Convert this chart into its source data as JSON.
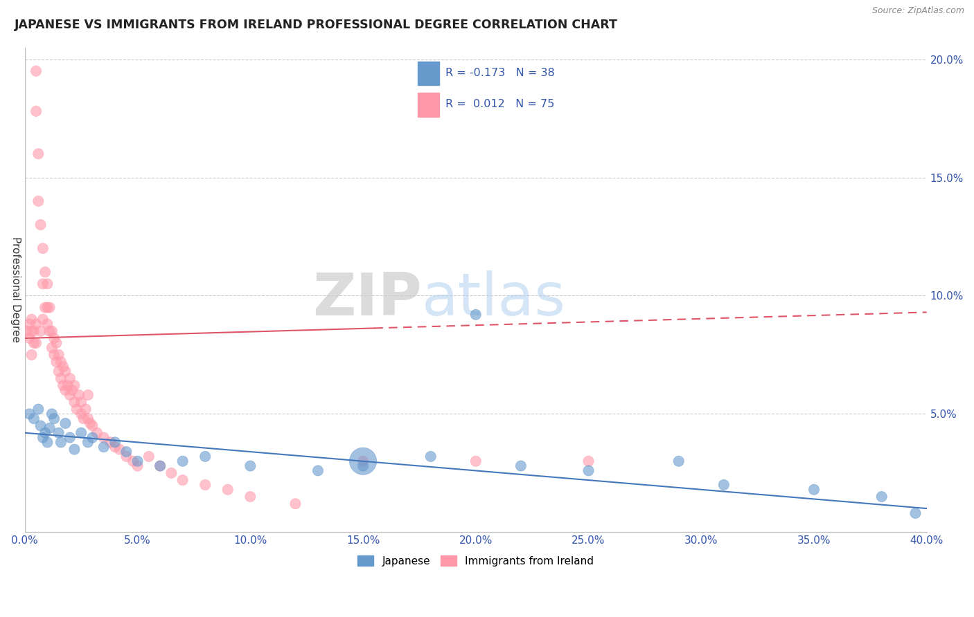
{
  "title": "JAPANESE VS IMMIGRANTS FROM IRELAND PROFESSIONAL DEGREE CORRELATION CHART",
  "source_text": "Source: ZipAtlas.com",
  "ylabel": "Professional Degree",
  "xlim": [
    0.0,
    0.4
  ],
  "ylim": [
    0.0,
    0.205
  ],
  "xticks": [
    0.0,
    0.05,
    0.1,
    0.15,
    0.2,
    0.25,
    0.3,
    0.35,
    0.4
  ],
  "yticks": [
    0.0,
    0.05,
    0.1,
    0.15,
    0.2
  ],
  "xtick_labels": [
    "0.0%",
    "5.0%",
    "10.0%",
    "15.0%",
    "20.0%",
    "25.0%",
    "30.0%",
    "35.0%",
    "40.0%"
  ],
  "ytick_labels": [
    "",
    "5.0%",
    "10.0%",
    "15.0%",
    "20.0%"
  ],
  "legend_r1": "-0.173",
  "legend_n1": "38",
  "legend_r2": "0.012",
  "legend_n2": "75",
  "blue_color": "#6699CC",
  "pink_color": "#FF99AA",
  "line_blue": "#4477BB",
  "line_pink": "#DD5566",
  "watermark_zip": "ZIP",
  "watermark_atlas": "atlas",
  "japanese_x": [
    0.002,
    0.004,
    0.006,
    0.007,
    0.008,
    0.009,
    0.01,
    0.011,
    0.012,
    0.013,
    0.015,
    0.016,
    0.018,
    0.02,
    0.022,
    0.025,
    0.028,
    0.03,
    0.035,
    0.04,
    0.045,
    0.05,
    0.06,
    0.07,
    0.08,
    0.1,
    0.13,
    0.15,
    0.18,
    0.2,
    0.22,
    0.25,
    0.29,
    0.31,
    0.35,
    0.38,
    0.395,
    0.15
  ],
  "japanese_y": [
    0.05,
    0.048,
    0.052,
    0.045,
    0.04,
    0.042,
    0.038,
    0.044,
    0.05,
    0.048,
    0.042,
    0.038,
    0.046,
    0.04,
    0.035,
    0.042,
    0.038,
    0.04,
    0.036,
    0.038,
    0.034,
    0.03,
    0.028,
    0.03,
    0.032,
    0.028,
    0.026,
    0.028,
    0.032,
    0.092,
    0.028,
    0.026,
    0.03,
    0.02,
    0.018,
    0.015,
    0.008,
    0.03
  ],
  "japanese_sizes": [
    30,
    30,
    30,
    30,
    30,
    30,
    30,
    30,
    30,
    30,
    30,
    30,
    30,
    30,
    30,
    30,
    30,
    30,
    30,
    30,
    30,
    30,
    30,
    30,
    30,
    30,
    30,
    30,
    30,
    30,
    30,
    30,
    30,
    30,
    30,
    30,
    30,
    200
  ],
  "ireland_x": [
    0.001,
    0.002,
    0.002,
    0.003,
    0.003,
    0.003,
    0.004,
    0.004,
    0.005,
    0.005,
    0.005,
    0.005,
    0.006,
    0.006,
    0.007,
    0.007,
    0.008,
    0.008,
    0.008,
    0.009,
    0.009,
    0.01,
    0.01,
    0.01,
    0.011,
    0.011,
    0.012,
    0.012,
    0.013,
    0.013,
    0.014,
    0.014,
    0.015,
    0.015,
    0.016,
    0.016,
    0.017,
    0.017,
    0.018,
    0.018,
    0.019,
    0.02,
    0.02,
    0.021,
    0.022,
    0.022,
    0.023,
    0.024,
    0.025,
    0.025,
    0.026,
    0.027,
    0.028,
    0.028,
    0.029,
    0.03,
    0.032,
    0.035,
    0.038,
    0.04,
    0.042,
    0.045,
    0.048,
    0.05,
    0.055,
    0.06,
    0.065,
    0.07,
    0.08,
    0.09,
    0.1,
    0.12,
    0.15,
    0.2,
    0.25
  ],
  "ireland_y": [
    0.085,
    0.082,
    0.088,
    0.075,
    0.085,
    0.09,
    0.08,
    0.085,
    0.195,
    0.178,
    0.08,
    0.088,
    0.16,
    0.14,
    0.13,
    0.085,
    0.12,
    0.105,
    0.09,
    0.11,
    0.095,
    0.105,
    0.095,
    0.088,
    0.095,
    0.085,
    0.085,
    0.078,
    0.082,
    0.075,
    0.08,
    0.072,
    0.075,
    0.068,
    0.072,
    0.065,
    0.07,
    0.062,
    0.068,
    0.06,
    0.062,
    0.065,
    0.058,
    0.06,
    0.055,
    0.062,
    0.052,
    0.058,
    0.05,
    0.055,
    0.048,
    0.052,
    0.048,
    0.058,
    0.046,
    0.045,
    0.042,
    0.04,
    0.038,
    0.036,
    0.035,
    0.032,
    0.03,
    0.028,
    0.032,
    0.028,
    0.025,
    0.022,
    0.02,
    0.018,
    0.015,
    0.012,
    0.03,
    0.03,
    0.03
  ],
  "ireland_sizes": [
    30,
    30,
    30,
    30,
    30,
    30,
    30,
    30,
    30,
    30,
    30,
    30,
    30,
    30,
    30,
    30,
    30,
    30,
    30,
    30,
    30,
    30,
    30,
    30,
    30,
    30,
    30,
    30,
    30,
    30,
    30,
    30,
    30,
    30,
    30,
    30,
    30,
    30,
    30,
    30,
    30,
    30,
    30,
    30,
    30,
    30,
    30,
    30,
    30,
    30,
    30,
    30,
    30,
    30,
    30,
    30,
    30,
    30,
    30,
    30,
    30,
    30,
    30,
    30,
    30,
    30,
    30,
    30,
    30,
    30,
    30,
    30,
    30,
    30,
    30
  ]
}
